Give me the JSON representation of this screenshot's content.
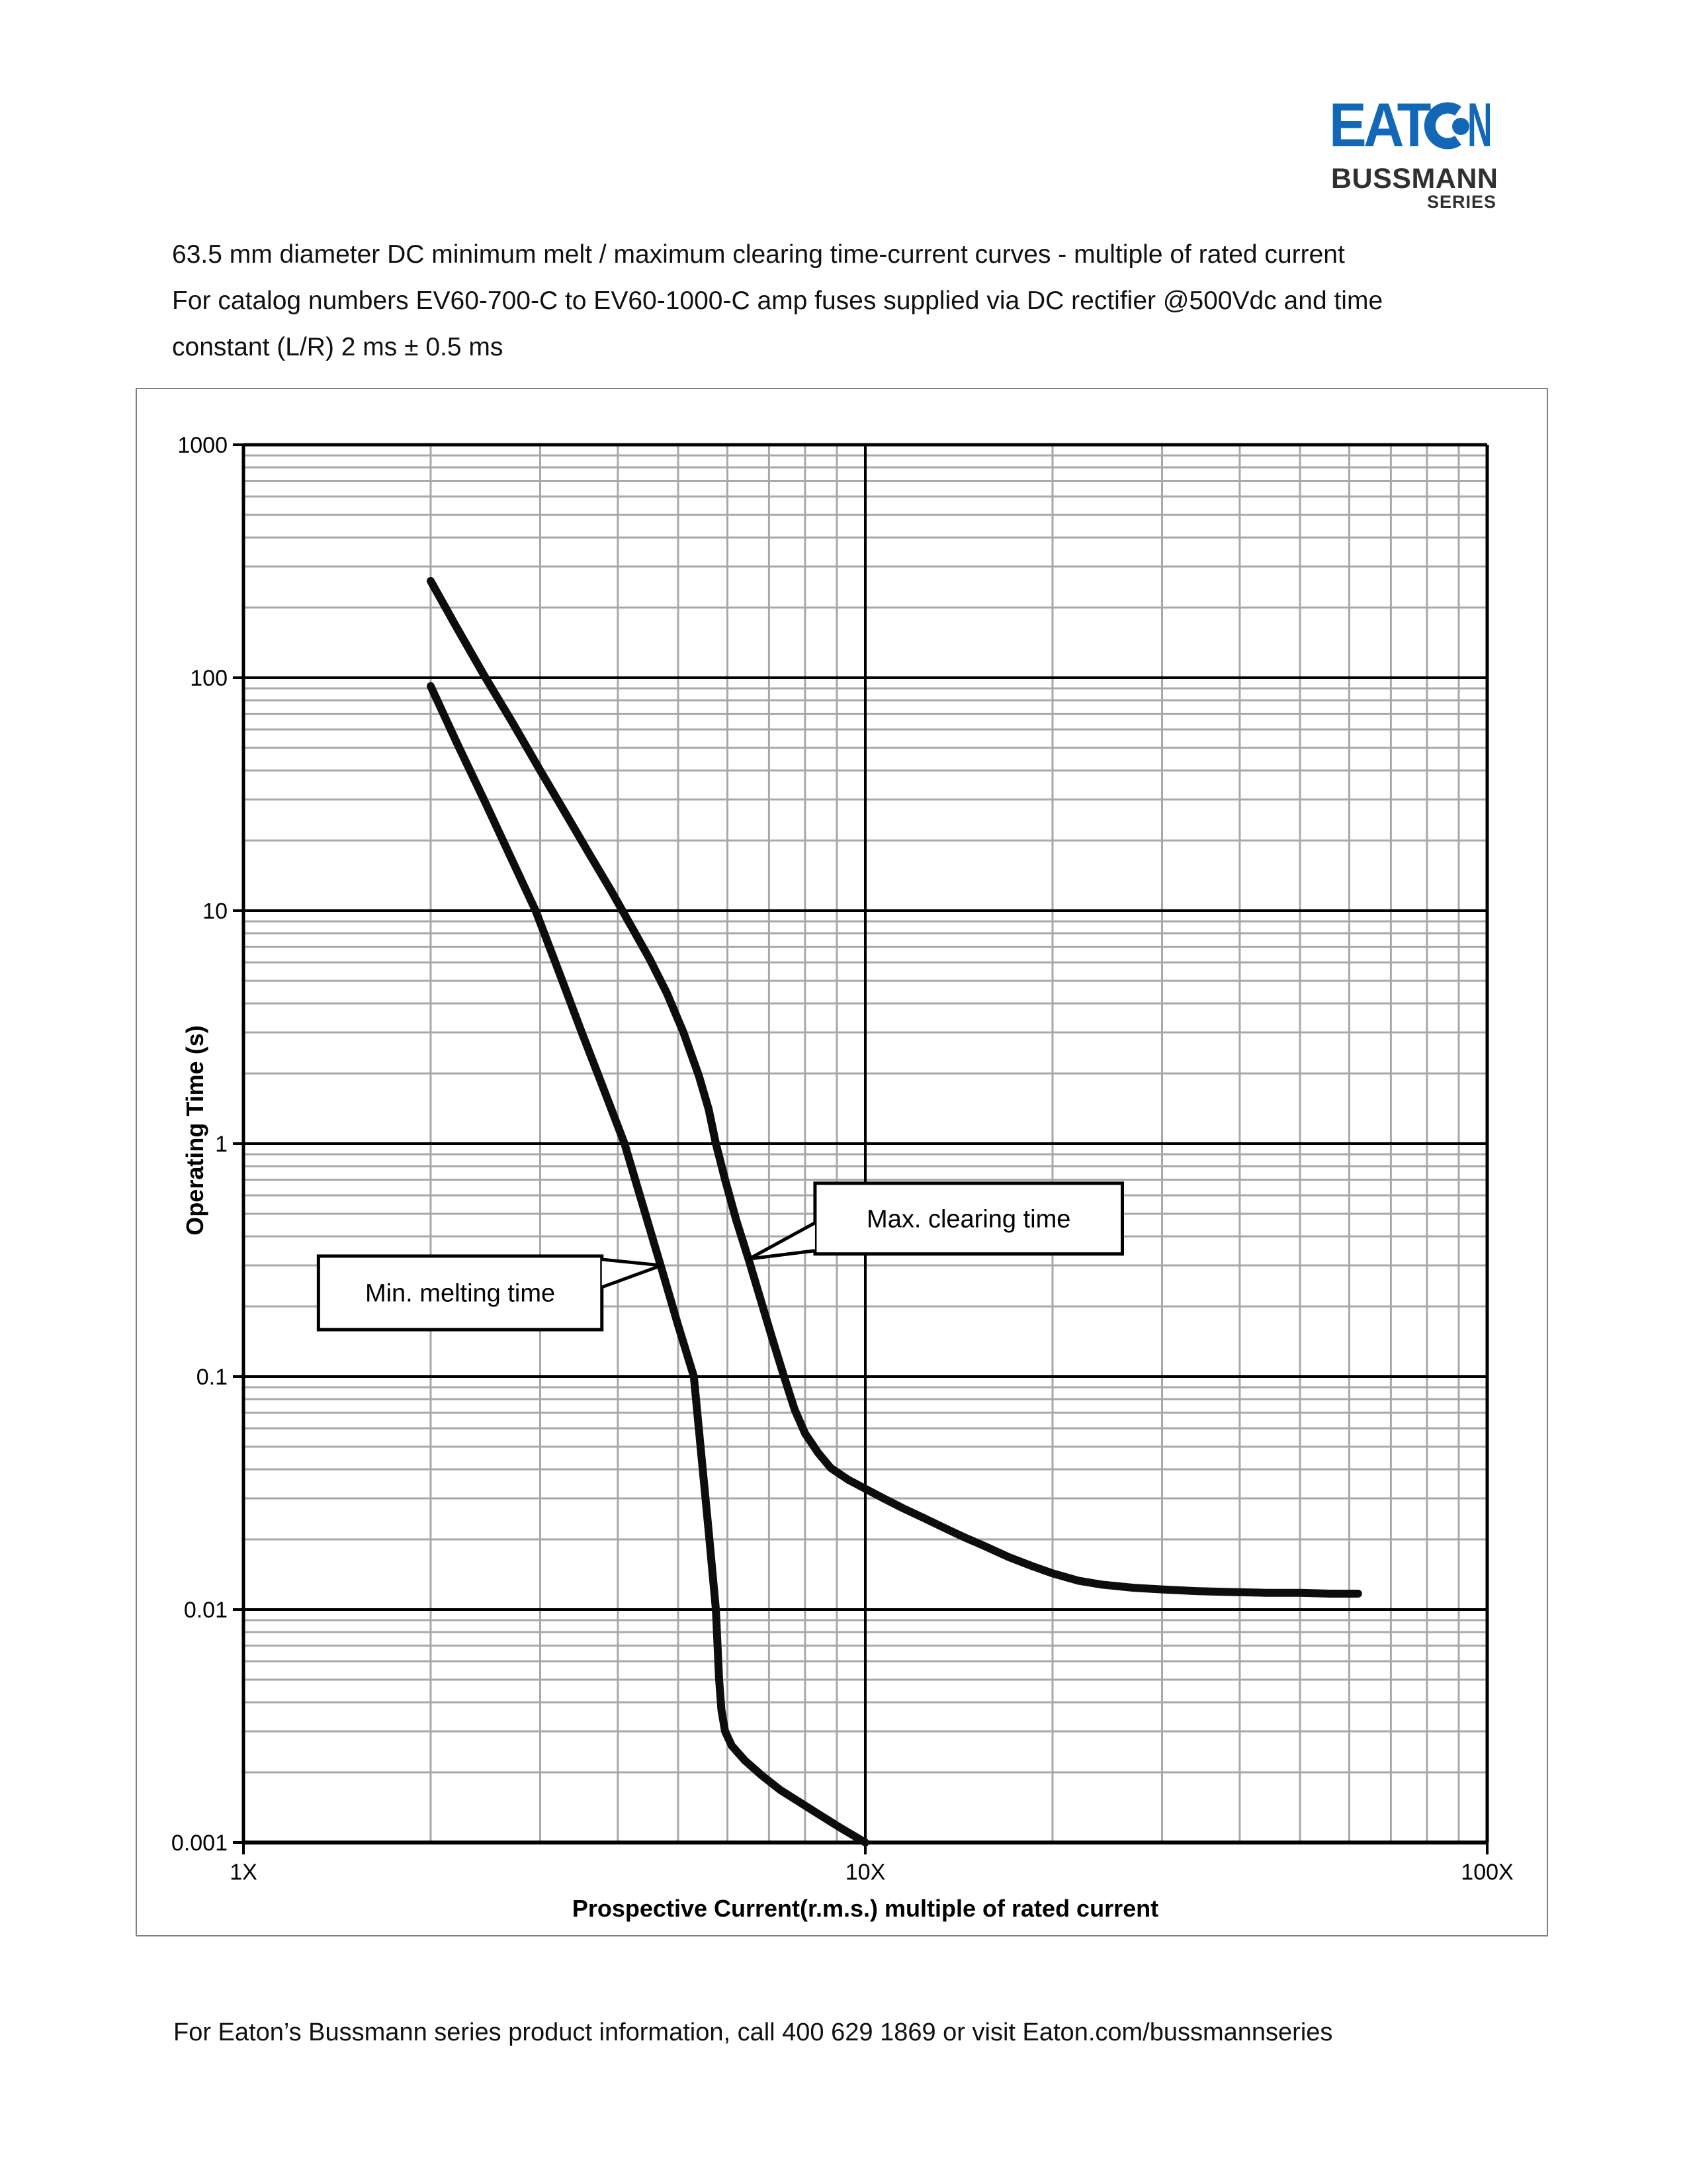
{
  "logo": {
    "eaton_left": "EAT",
    "eaton_right": "N",
    "blue": "#1268b7",
    "bussmann": "BUSSMANN",
    "series": "SERIES"
  },
  "title_lines": [
    "63.5 mm diameter DC minimum melt / maximum clearing time-current curves - multiple of rated current",
    "For catalog numbers EV60-700-C to EV60-1000-C amp fuses supplied via DC rectifier @500Vdc and time",
    "constant (L/R) 2 ms ± 0.5 ms"
  ],
  "footer": "For Eaton’s Bussmann series product information, call 400 629 1869 or visit Eaton.com/bussmannseries",
  "chart_data": {
    "type": "line",
    "title": "",
    "xlabel": "Prospective Current(r.m.s.) multiple of rated current",
    "ylabel": "Operating Time (s)",
    "x_scale": "log",
    "y_scale": "log",
    "xlim": [
      1,
      100
    ],
    "ylim": [
      0.001,
      1000
    ],
    "grid": {
      "minor_color": "#a8a8a8",
      "major_color": "#000000",
      "curve_color": "#0d0d0d"
    },
    "x_ticks": [
      {
        "v": 1,
        "label": "1X"
      },
      {
        "v": 10,
        "label": "10X"
      },
      {
        "v": 100,
        "label": "100X"
      }
    ],
    "y_ticks": [
      {
        "v": 1000,
        "label": "1000"
      },
      {
        "v": 100,
        "label": "100"
      },
      {
        "v": 10,
        "label": "10"
      },
      {
        "v": 1,
        "label": "1"
      },
      {
        "v": 0.1,
        "label": "0.1"
      },
      {
        "v": 0.01,
        "label": "0.01"
      },
      {
        "v": 0.001,
        "label": "0.001"
      }
    ],
    "series": [
      {
        "name": "Max. clearing time",
        "points": [
          [
            2.0,
            260
          ],
          [
            2.2,
            165
          ],
          [
            2.45,
            100
          ],
          [
            2.7,
            65
          ],
          [
            3.0,
            40
          ],
          [
            3.3,
            26
          ],
          [
            3.6,
            17.5
          ],
          [
            3.9,
            12.2
          ],
          [
            4.2,
            8.6
          ],
          [
            4.5,
            6.2
          ],
          [
            4.8,
            4.4
          ],
          [
            5.1,
            3.0
          ],
          [
            5.4,
            1.95
          ],
          [
            5.6,
            1.4
          ],
          [
            5.75,
            1.0
          ],
          [
            5.95,
            0.7
          ],
          [
            6.2,
            0.47
          ],
          [
            6.5,
            0.315
          ],
          [
            6.8,
            0.21
          ],
          [
            7.1,
            0.143
          ],
          [
            7.4,
            0.1
          ],
          [
            7.7,
            0.072
          ],
          [
            8.0,
            0.057
          ],
          [
            8.4,
            0.047
          ],
          [
            8.8,
            0.0405
          ],
          [
            9.4,
            0.036
          ],
          [
            10,
            0.033
          ],
          [
            10.7,
            0.03
          ],
          [
            11.5,
            0.0272
          ],
          [
            12.5,
            0.0245
          ],
          [
            13.5,
            0.0222
          ],
          [
            14.5,
            0.0203
          ],
          [
            15.5,
            0.0188
          ],
          [
            17,
            0.0168
          ],
          [
            18.5,
            0.0154
          ],
          [
            20,
            0.0143
          ],
          [
            22,
            0.0133
          ],
          [
            24,
            0.0128
          ],
          [
            27,
            0.0124
          ],
          [
            30,
            0.0122
          ],
          [
            34,
            0.012
          ],
          [
            38,
            0.0119
          ],
          [
            44,
            0.0118
          ],
          [
            50,
            0.0118
          ],
          [
            56,
            0.0117
          ],
          [
            62,
            0.0117
          ]
        ]
      },
      {
        "name": "Min. melting time",
        "points": [
          [
            2.0,
            92
          ],
          [
            2.2,
            53
          ],
          [
            2.45,
            29
          ],
          [
            2.7,
            16.6
          ],
          [
            2.95,
            10
          ],
          [
            3.2,
            5.66
          ],
          [
            3.5,
            3.0
          ],
          [
            3.8,
            1.7
          ],
          [
            4.1,
            1.0
          ],
          [
            4.4,
            0.53
          ],
          [
            4.7,
            0.292
          ],
          [
            5.0,
            0.166
          ],
          [
            5.3,
            0.1
          ],
          [
            5.45,
            0.0458
          ],
          [
            5.6,
            0.0215
          ],
          [
            5.75,
            0.01
          ],
          [
            5.82,
            0.005
          ],
          [
            5.87,
            0.0037
          ],
          [
            5.95,
            0.003
          ],
          [
            6.1,
            0.0026
          ],
          [
            6.4,
            0.00225
          ],
          [
            6.8,
            0.00195
          ],
          [
            7.3,
            0.00168
          ],
          [
            7.9,
            0.00147
          ],
          [
            8.5,
            0.0013
          ],
          [
            9.2,
            0.00114
          ],
          [
            10.0,
            0.001
          ]
        ]
      }
    ],
    "callouts": [
      {
        "label": "Min. melting time",
        "box": {
          "x1": 1.32,
          "x2": 3.77,
          "y1": 0.159,
          "y2": 0.329
        },
        "tip": [
          4.7,
          0.3
        ],
        "side": "right"
      },
      {
        "label": "Max. clearing time",
        "box": {
          "x1": 8.3,
          "x2": 25.9,
          "y1": 0.336,
          "y2": 0.676
        },
        "tip": [
          6.5,
          0.32
        ],
        "side": "left"
      }
    ]
  }
}
